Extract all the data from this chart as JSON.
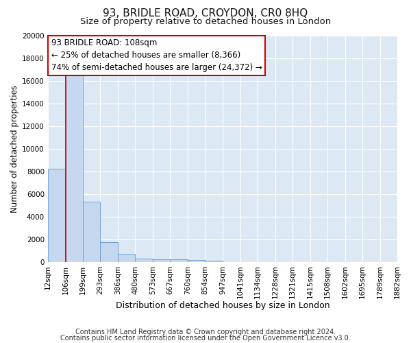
{
  "title": "93, BRIDLE ROAD, CROYDON, CR0 8HQ",
  "subtitle": "Size of property relative to detached houses in London",
  "xlabel": "Distribution of detached houses by size in London",
  "ylabel": "Number of detached properties",
  "footnote1": "Contains HM Land Registry data © Crown copyright and database right 2024.",
  "footnote2": "Contains public sector information licensed under the Open Government Licence v3.0.",
  "annotation_title": "93 BRIDLE ROAD: 108sqm",
  "annotation_line2": "← 25% of detached houses are smaller (8,366)",
  "annotation_line3": "74% of semi-detached houses are larger (24,372) →",
  "bin_edges": [
    12,
    106,
    199,
    293,
    386,
    480,
    573,
    667,
    760,
    854,
    947,
    1041,
    1134,
    1228,
    1321,
    1415,
    1508,
    1602,
    1695,
    1789,
    1882
  ],
  "bin_counts": [
    8200,
    16700,
    5300,
    1750,
    700,
    300,
    225,
    200,
    170,
    130,
    0,
    0,
    0,
    0,
    0,
    0,
    0,
    0,
    0,
    0
  ],
  "bar_color": "#c5d8f0",
  "bar_edge_color": "#6699cc",
  "vline_color": "#cc0000",
  "vline_x": 108,
  "annotation_box_facecolor": "#ffffff",
  "annotation_box_edgecolor": "#cc0000",
  "plot_bg_color": "#dce9f5",
  "figure_bg_color": "#ffffff",
  "ylim": [
    0,
    20000
  ],
  "yticks": [
    0,
    2000,
    4000,
    6000,
    8000,
    10000,
    12000,
    14000,
    16000,
    18000,
    20000
  ],
  "grid_color": "#ffffff",
  "title_fontsize": 11,
  "subtitle_fontsize": 9.5,
  "xlabel_fontsize": 9,
  "ylabel_fontsize": 8.5,
  "tick_fontsize": 7.5,
  "annotation_fontsize": 8.5,
  "footnote_fontsize": 7
}
